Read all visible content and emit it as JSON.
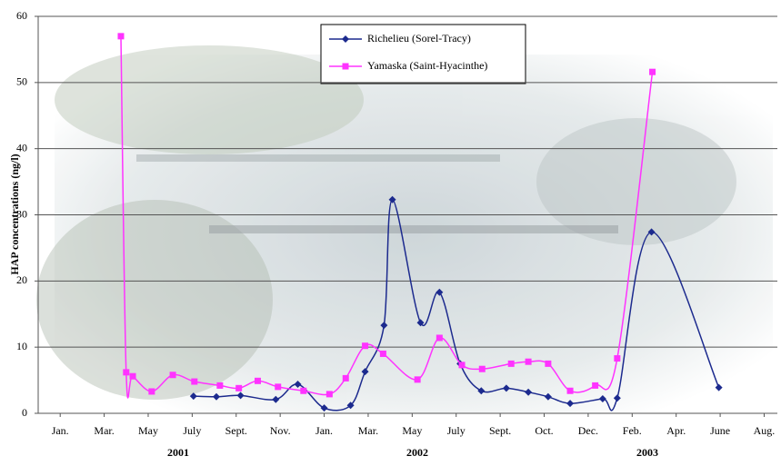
{
  "chart_data": {
    "type": "line",
    "y_label": "HAP concentrations (ng/l)",
    "year_labels": [
      "2001",
      "2002",
      "2003"
    ],
    "xlim": [
      -0.5,
      16.3
    ],
    "xticks": [
      {
        "value": 0,
        "label": "Jan."
      },
      {
        "value": 1,
        "label": "Mar."
      },
      {
        "value": 2,
        "label": "May"
      },
      {
        "value": 3,
        "label": "July"
      },
      {
        "value": 4,
        "label": "Sept."
      },
      {
        "value": 5,
        "label": "Nov."
      },
      {
        "value": 6,
        "label": "Jan."
      },
      {
        "value": 7,
        "label": "Mar."
      },
      {
        "value": 8,
        "label": "May"
      },
      {
        "value": 9,
        "label": "July"
      },
      {
        "value": 10,
        "label": "Sept."
      },
      {
        "value": 11,
        "label": "Oct."
      },
      {
        "value": 12,
        "label": "Dec."
      },
      {
        "value": 13,
        "label": "Feb."
      },
      {
        "value": 14,
        "label": "Apr."
      },
      {
        "value": 15,
        "label": "June"
      },
      {
        "value": 16,
        "label": "Aug."
      }
    ],
    "ylim": [
      0,
      60
    ],
    "yticks": [
      0,
      10,
      20,
      30,
      40,
      50,
      60
    ],
    "grid": true,
    "series": [
      {
        "name": "Richelieu (Sorel-Tracy)",
        "color": "#1c2a8e",
        "marker": "diamond",
        "x": [
          3.03,
          3.55,
          4.1,
          4.9,
          5.4,
          6.0,
          6.6,
          6.93,
          7.36,
          7.55,
          8.19,
          8.62,
          9.09,
          9.57,
          10.14,
          10.64,
          11.09,
          11.59,
          12.33,
          12.66,
          13.44,
          14.97
        ],
        "values": [
          2.6,
          2.5,
          2.7,
          2.1,
          4.4,
          0.8,
          1.2,
          6.3,
          13.3,
          32.3,
          13.7,
          18.3,
          7.5,
          3.4,
          3.8,
          3.2,
          2.5,
          1.5,
          2.2,
          2.3,
          27.4,
          3.9
        ]
      },
      {
        "name": "Yamaska (Saint-Hyacinthe)",
        "color": "#ff33ff",
        "marker": "square",
        "x": [
          1.38,
          1.5,
          1.65,
          2.08,
          2.56,
          3.05,
          3.63,
          4.06,
          4.49,
          4.95,
          5.53,
          6.12,
          6.49,
          6.93,
          7.34,
          8.12,
          8.62,
          9.13,
          9.59,
          10.25,
          10.64,
          11.09,
          11.59,
          12.16,
          12.66,
          13.46
        ],
        "values": [
          57,
          6.2,
          5.6,
          3.3,
          5.8,
          4.8,
          4.2,
          3.8,
          4.9,
          4.0,
          3.4,
          2.9,
          5.3,
          10.2,
          9.0,
          5.1,
          11.4,
          7.3,
          6.7,
          7.5,
          7.8,
          7.5,
          3.4,
          4.2,
          8.3,
          51.6
        ]
      }
    ]
  }
}
